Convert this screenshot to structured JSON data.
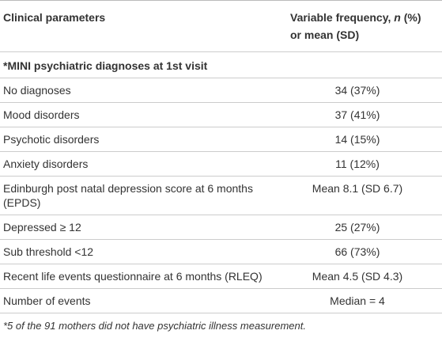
{
  "table": {
    "header": [
      "Clinical parameters",
      {
        "line1": [
          "Variable frequency, ",
          "n",
          " (%)"
        ],
        "line2": "or mean (SD)"
      }
    ],
    "section": "*MINI psychiatric diagnoses at 1st visit",
    "rows": [
      [
        "No diagnoses",
        "34 (37%)"
      ],
      [
        "Mood disorders",
        "37 (41%)"
      ],
      [
        "Psychotic disorders",
        "14 (15%)"
      ],
      [
        "Anxiety disorders",
        "11 (12%)"
      ],
      [
        "Edinburgh post natal depression score at 6 months (EPDS)",
        "Mean 8.1 (SD 6.7)"
      ],
      [
        "Depressed ≥ 12",
        "25 (27%)"
      ],
      [
        "Sub threshold <12",
        "66 (73%)"
      ],
      [
        "Recent life events questionnaire at 6 months (RLEQ)",
        "Mean 4.5 (SD 4.3)"
      ],
      [
        "Number of events",
        "Median = 4"
      ]
    ],
    "footnote": "*5 of the 91 mothers did not have psychiatric illness measurement."
  }
}
